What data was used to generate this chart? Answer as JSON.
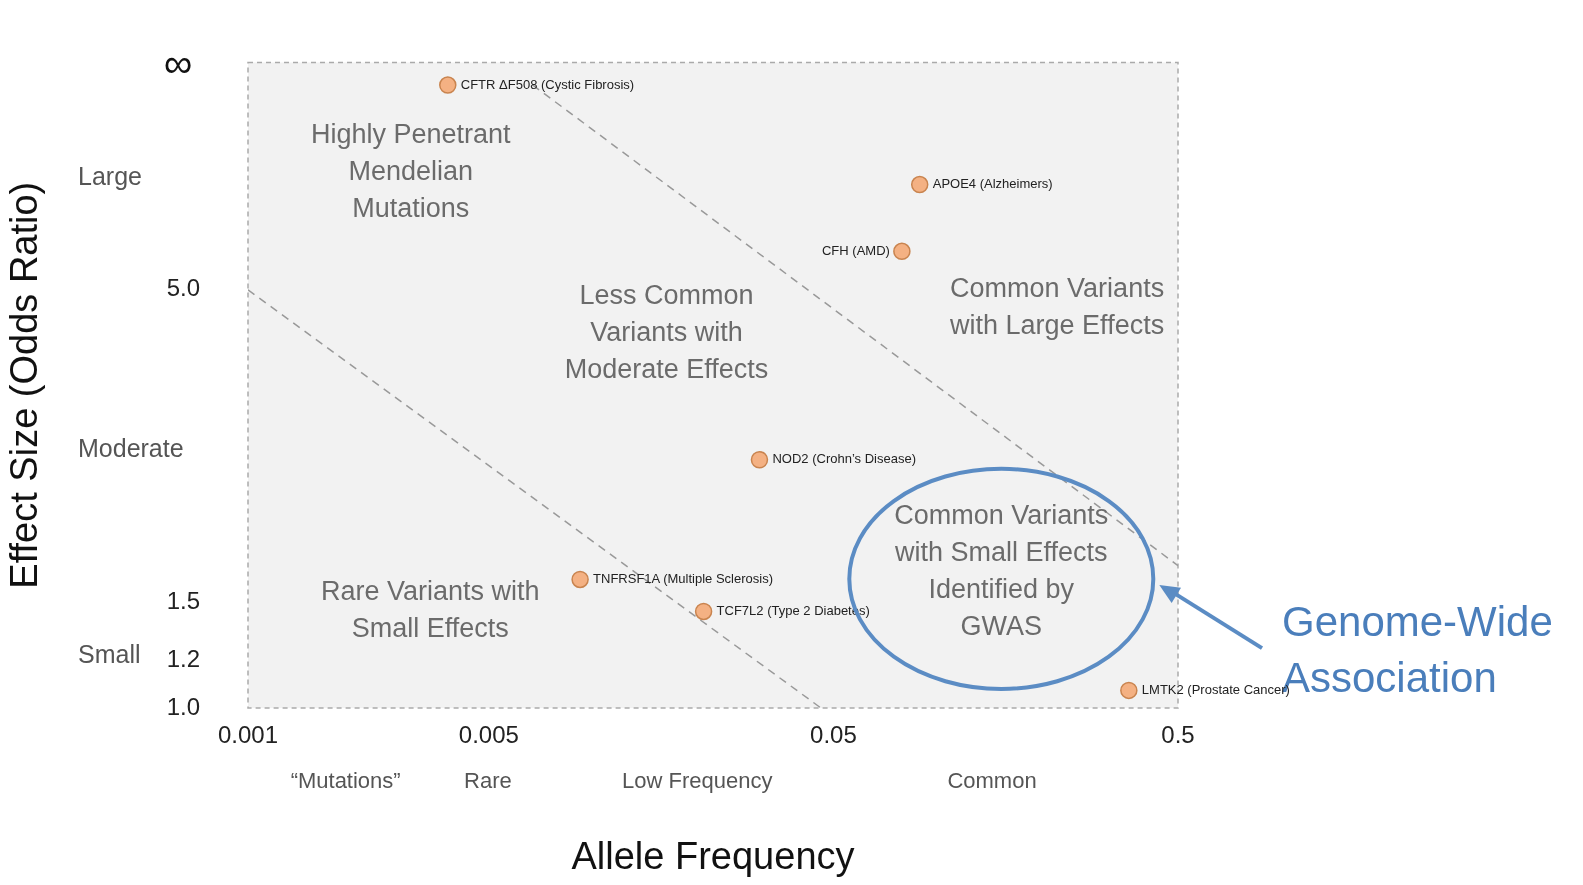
{
  "chart_data": {
    "type": "scatter",
    "xlabel": "Allele Frequency",
    "ylabel": "Effect Size (Odds Ratio)",
    "log": "xy",
    "xlim": [
      0.001,
      0.5
    ],
    "xticks": [
      0.001,
      0.005,
      0.05,
      0.5
    ],
    "ylim": [
      1,
      12
    ],
    "yticks": [
      {
        "value": 1,
        "label": "1.0"
      },
      1.2,
      1.5,
      {
        "value": 5,
        "label": "5.0"
      }
    ],
    "grid": false,
    "legend": false,
    "marker": "circle",
    "series": [
      {
        "type": "scatter",
        "color": "#f4b183",
        "x": [
          0.0038,
          0.089,
          0.079,
          0.0305,
          0.0092,
          0.021,
          0.36
        ],
        "values": [
          11,
          7.5,
          5.8,
          2.6,
          1.64,
          1.45,
          1.07
        ]
      },
      {
        "type": "line",
        "color": "#999999",
        "line_style": "dashed",
        "marker": "none",
        "x": [
          0.001,
          0.046
        ],
        "values": [
          5,
          1
        ]
      },
      {
        "type": "line",
        "color": "#999999",
        "line_style": "dashed",
        "marker": "none",
        "x": [
          0.0067,
          0.5
        ],
        "values": [
          11,
          1.73
        ]
      }
    ],
    "annotations": [
      "Highly Penetrant\nMendelian\nMutations",
      "Common Variants\nwith Large Effects",
      "Less Common\nVariants with\nModerate Effects",
      "Rare Variants with\nSmall Effects",
      "Common Variants\nwith Small Effects\nIdentified by\nGWAS",
      "“Mutations”",
      "Rare",
      "Low Frequency",
      "Common",
      "Large",
      "Moderate",
      "Small",
      "Genome-Wide\nAssociation",
      "∞",
      {
        "text": "CFTR ΔF508 (Cystic Fibrosis)",
        "x": 0.0038,
        "y": 11
      },
      {
        "text": "APOE4 (Alzheimers)",
        "x": 0.089,
        "y": 7.5
      },
      {
        "text": "CFH (AMD)",
        "x": 0.079,
        "y": 5.8
      },
      {
        "text": "NOD2 (Crohn’s Disease)",
        "x": 0.0305,
        "y": 2.6
      },
      {
        "text": "TNFRSF1A (Multiple Sclerosis)",
        "x": 0.0092,
        "y": 1.64
      },
      {
        "text": "TCF7L2 (Type 2 Diabetes)",
        "x": 0.021,
        "y": 1.45
      },
      {
        "text": "LMTK2 (Prostate Cancer)",
        "x": 0.36,
        "y": 1.07
      }
    ]
  }
}
